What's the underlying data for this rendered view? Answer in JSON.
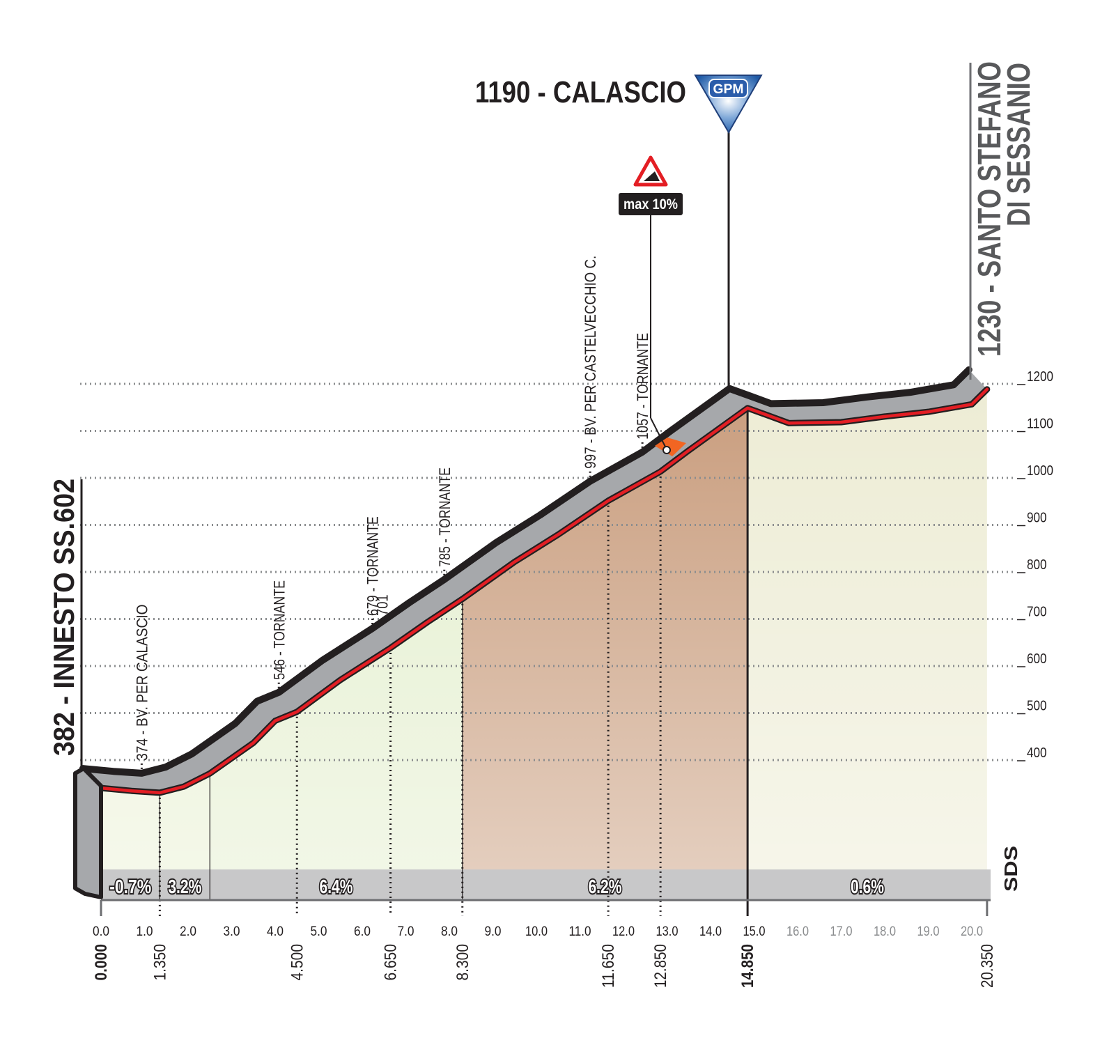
{
  "chart_data": {
    "type": "area",
    "summit_label": "1190 - CALASCIO",
    "gpm": "GPM",
    "start_label": "382 - INNESTO SS.602",
    "finish_label": [
      "1230 - SANTO STEFANO",
      "DI SESSANIO"
    ],
    "max_gradient": "max 10%",
    "logo": "SDS",
    "x": [
      0,
      0.7,
      1.35,
      1.9,
      2.5,
      3.5,
      4.0,
      4.5,
      5.5,
      6.65,
      7.5,
      8.3,
      9.5,
      10.5,
      11.65,
      12.85,
      13.5,
      14.85,
      15.3,
      15.8,
      17.0,
      18.0,
      19.0,
      20.0,
      20.35
    ],
    "values": [
      382,
      376,
      372,
      385,
      413,
      478,
      525,
      544,
      612,
      680,
      735,
      784,
      863,
      921,
      993,
      1055,
      1100,
      1190,
      1175,
      1158,
      1160,
      1172,
      1182,
      1198,
      1230
    ],
    "xlim": [
      0,
      20
    ],
    "ylim": [
      400,
      1200
    ],
    "xticks": [
      {
        "value": 0,
        "label": "0.0"
      },
      {
        "value": 1,
        "label": "1.0"
      },
      {
        "value": 2,
        "label": "2.0"
      },
      {
        "value": 3,
        "label": "3.0"
      },
      {
        "value": 4,
        "label": "4.0"
      },
      {
        "value": 5,
        "label": "5.0"
      },
      {
        "value": 6,
        "label": "6.0"
      },
      {
        "value": 7,
        "label": "7.0"
      },
      {
        "value": 8,
        "label": "8.0"
      },
      {
        "value": 9,
        "label": "9.0"
      },
      {
        "value": 10,
        "label": "10.0"
      },
      {
        "value": 11,
        "label": "11.0"
      },
      {
        "value": 12,
        "label": "12.0"
      },
      {
        "value": 13,
        "label": "13.0"
      },
      {
        "value": 14,
        "label": "14.0"
      },
      {
        "value": 15,
        "label": "15.0"
      },
      {
        "value": 16,
        "label": "16.0"
      },
      {
        "value": 17,
        "label": "17.0"
      },
      {
        "value": 18,
        "label": "18.0"
      },
      {
        "value": 19,
        "label": "19.0"
      },
      {
        "value": 20,
        "label": "20.0"
      }
    ],
    "yticks": [
      400,
      500,
      600,
      700,
      800,
      900,
      1000,
      1100,
      1200
    ],
    "grid": true,
    "waypoints": [
      {
        "value": 0,
        "label": "0.000"
      },
      {
        "value": 1.35,
        "label": "1.350"
      },
      {
        "value": 4.5,
        "label": "4.500"
      },
      {
        "value": 6.65,
        "label": "6.650"
      },
      {
        "value": 8.3,
        "label": "8.300"
      },
      {
        "value": 11.65,
        "label": "11.650"
      },
      {
        "value": 12.85,
        "label": "12.850"
      },
      {
        "value": 14.85,
        "label": "14.850"
      },
      {
        "value": 20.35,
        "label": "20.350"
      }
    ],
    "annotations": [
      "374 - BV. PER CALASCIO",
      "546 - TORNANTE",
      "679 - TORNANTE",
      "701",
      "785 - TORNANTE",
      "997 - BV. PER CASTELVECCHIO C.",
      "1057 - TORNANTE"
    ],
    "gradients": {
      "bounds": [
        0,
        1.35,
        2.5,
        8.3,
        14.85,
        20.35
      ],
      "values": [
        -0.7,
        3.2,
        6.4,
        6.2,
        0.6
      ],
      "value_labels": [
        "-0.7%",
        "3.2%",
        "6.4%",
        "6.2%",
        "0.6%"
      ],
      "colors": [
        "#e9f0d2",
        "#e6efcd",
        "#e1edc9",
        "#c3926f",
        "#ebead0"
      ]
    }
  }
}
